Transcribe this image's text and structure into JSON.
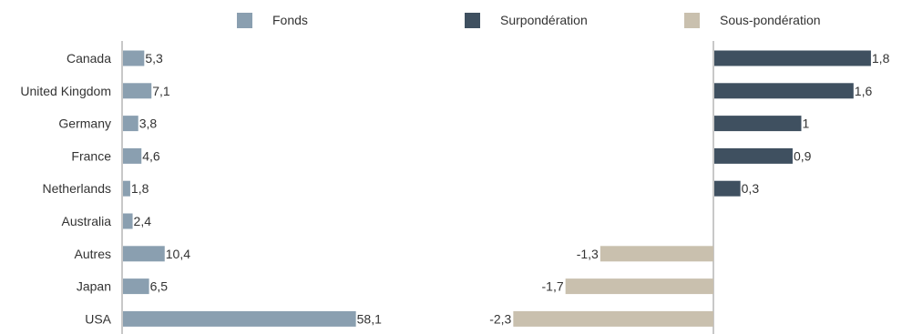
{
  "colors": {
    "fonds": "#8a9fb0",
    "over": "#3f5060",
    "under": "#c9c0ae",
    "axis": "#c8c8c8"
  },
  "legend": {
    "fonds": "Fonds",
    "over": "Surpondération",
    "under": "Sous-pondération"
  },
  "chart_data": [
    {
      "type": "bar",
      "orientation": "horizontal",
      "categories": [
        "Canada",
        "United Kingdom",
        "Germany",
        "France",
        "Netherlands",
        "Australia",
        "Autres",
        "Japan",
        "USA"
      ],
      "series": [
        {
          "name": "Fonds",
          "values": [
            5.3,
            7.1,
            3.8,
            4.6,
            1.8,
            2.4,
            10.4,
            6.5,
            58.1
          ]
        }
      ],
      "value_labels": [
        "5,3",
        "7,1",
        "3,8",
        "4,6",
        "1,8",
        "2,4",
        "10,4",
        "6,5",
        "58,1"
      ],
      "xlim": [
        0,
        66
      ],
      "grid": false
    },
    {
      "type": "bar",
      "orientation": "horizontal",
      "categories": [
        "Canada",
        "United Kingdom",
        "Germany",
        "France",
        "Netherlands",
        "Australia",
        "Autres",
        "Japan",
        "USA"
      ],
      "series": [
        {
          "name": "Surpondération",
          "values": [
            1.8,
            1.6,
            1.0,
            0.9,
            0.3,
            null,
            null,
            null,
            null
          ]
        },
        {
          "name": "Sous-pondération",
          "values": [
            null,
            null,
            null,
            null,
            null,
            null,
            -1.3,
            -1.7,
            -2.3
          ]
        }
      ],
      "value_labels": [
        "1,8",
        "1,6",
        "1",
        "0,9",
        "0,3",
        "",
        "-1,3",
        "-1,7",
        "-2,3"
      ],
      "xlim": [
        -2.3,
        1.8
      ],
      "grid": false
    }
  ]
}
